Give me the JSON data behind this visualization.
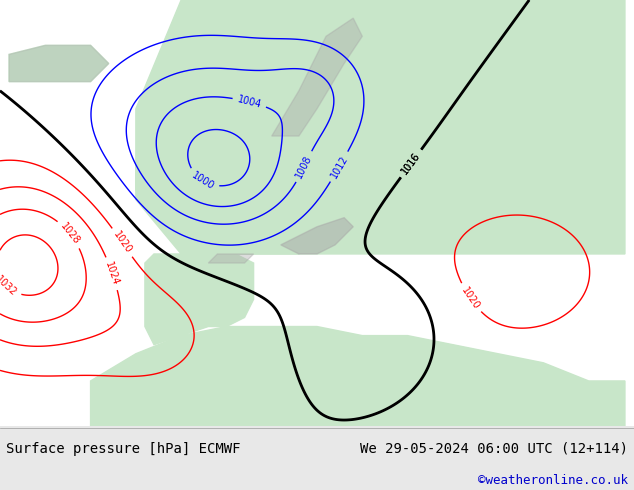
{
  "title_left": "Surface pressure [hPa] ECMWF",
  "title_right": "We 29-05-2024 06:00 UTC (12+114)",
  "copyright": "©weatheronline.co.uk",
  "sea_color": "#d8e8f0",
  "land_color": "#c8e6c9",
  "mountain_color": "#a8a8a8",
  "footer_bg": "#e8e8e8",
  "footer_text_color": "#000000",
  "copyright_color": "#0000cc",
  "title_fontsize": 10,
  "copyright_fontsize": 9,
  "fig_width": 6.34,
  "fig_height": 4.9,
  "dpi": 100
}
